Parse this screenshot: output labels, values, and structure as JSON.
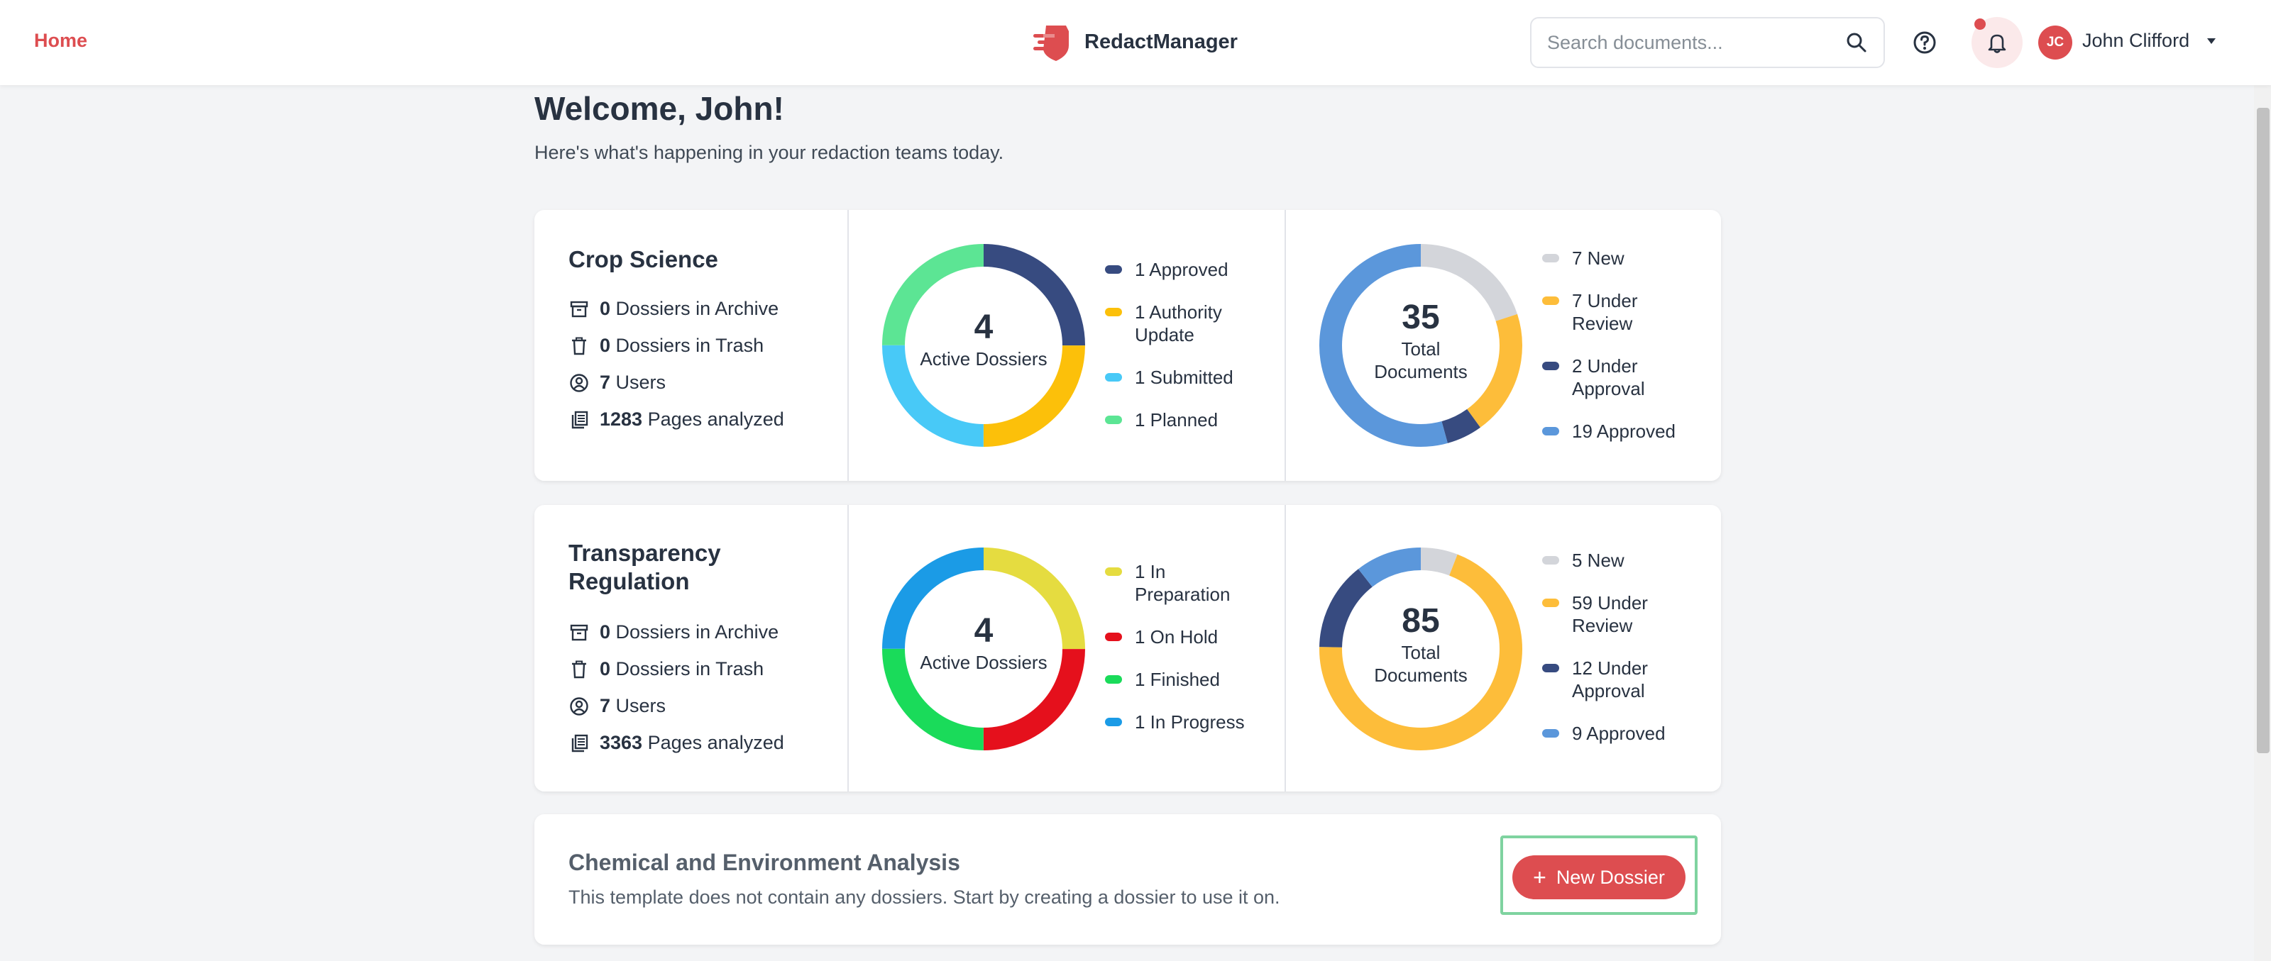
{
  "header": {
    "home_label": "Home",
    "brand_name": "RedactManager",
    "search_placeholder": "Search documents...",
    "user_initials": "JC",
    "user_name": "John Clifford"
  },
  "welcome": {
    "title": "Welcome, John!",
    "subtitle": "Here's what's happening in your redaction teams today."
  },
  "labels": {
    "archive": "Dossiers in Archive",
    "trash": "Dossiers in Trash",
    "users": "Users",
    "pages": "Pages analyzed",
    "active_dossiers": "Active Dossiers",
    "total_documents_line1": "Total",
    "total_documents_line2": "Documents"
  },
  "teams": [
    {
      "name": "Crop Science",
      "stats": {
        "archive": "0",
        "trash": "0",
        "users": "7",
        "pages": "1283"
      },
      "active_dossiers": {
        "total": "4",
        "segments": [
          {
            "label": "1 Approved",
            "value": 1,
            "color": "#374b80"
          },
          {
            "label": "1 Authority Update",
            "value": 1,
            "color": "#fcc00a"
          },
          {
            "label": "1 Submitted",
            "value": 1,
            "color": "#48c9f7"
          },
          {
            "label": "1 Planned",
            "value": 1,
            "color": "#5ce594"
          }
        ]
      },
      "documents": {
        "total": "35",
        "segments": [
          {
            "label": "7 New",
            "value": 7,
            "color": "#d3d5da"
          },
          {
            "label": "7 Under Review",
            "value": 7,
            "color": "#fdbd3a"
          },
          {
            "label": "2 Under Approval",
            "value": 2,
            "color": "#374b80"
          },
          {
            "label": "19 Approved",
            "value": 19,
            "color": "#5b97db"
          }
        ]
      }
    },
    {
      "name": "Transparency Regulation",
      "stats": {
        "archive": "0",
        "trash": "0",
        "users": "7",
        "pages": "3363"
      },
      "active_dossiers": {
        "total": "4",
        "segments": [
          {
            "label": "1 In Preparation",
            "value": 1,
            "color": "#e5dc40"
          },
          {
            "label": "1 On Hold",
            "value": 1,
            "color": "#e5101c"
          },
          {
            "label": "1 Finished",
            "value": 1,
            "color": "#1adb5a"
          },
          {
            "label": "1 In Progress",
            "value": 1,
            "color": "#1b9be6"
          }
        ]
      },
      "documents": {
        "total": "85",
        "segments": [
          {
            "label": "5 New",
            "value": 5,
            "color": "#d3d5da"
          },
          {
            "label": "59 Under Review",
            "value": 59,
            "color": "#fdbd3a"
          },
          {
            "label": "12 Under Approval",
            "value": 12,
            "color": "#374b80"
          },
          {
            "label": "9 Approved",
            "value": 9,
            "color": "#5b97db"
          }
        ]
      }
    }
  ],
  "template_card": {
    "title": "Chemical and Environment Analysis",
    "description": "This template does not contain any dossiers. Start by creating a dossier to use it on.",
    "button_label": "New Dossier"
  },
  "colors": {
    "accent": "#dd4d50",
    "text": "#283241",
    "background": "#f3f4f6"
  }
}
